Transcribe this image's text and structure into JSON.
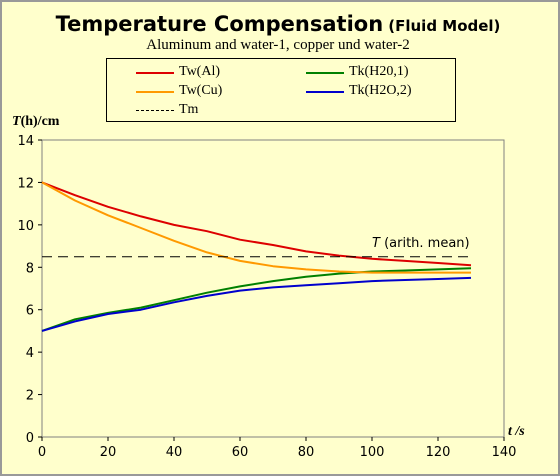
{
  "chart_data": {
    "type": "line",
    "title": "Temperature Compensation",
    "title_tag": "(Fluid Model)",
    "subtitle": "Aluminum and water-1, copper und water-2",
    "ylabel_italic": "T",
    "ylabel_rest": "(h)/cm",
    "xlabel": "t /s",
    "xlim": [
      0,
      140
    ],
    "ylim": [
      0,
      14
    ],
    "xticks": [
      "0",
      "20",
      "40",
      "60",
      "80",
      "100",
      "120",
      "140"
    ],
    "yticks": [
      "0",
      "2",
      "4",
      "6",
      "8",
      "10",
      "12",
      "14"
    ],
    "grid": false,
    "legend_position": "top",
    "annotation_italic": "T",
    "annotation_rest": " (arith. mean)",
    "annotation_x": 100,
    "annotation_y": 9.2,
    "series": [
      {
        "name": "Tw(Al)",
        "color": "#dd0000",
        "style": "solid",
        "x": [
          0,
          10,
          20,
          30,
          40,
          50,
          60,
          70,
          80,
          90,
          100,
          110,
          120,
          130
        ],
        "y": [
          12,
          11.4,
          10.85,
          10.4,
          10,
          9.7,
          9.3,
          9.05,
          8.75,
          8.55,
          8.4,
          8.3,
          8.2,
          8.1
        ]
      },
      {
        "name": "Tk(H20,1)",
        "color": "#008000",
        "style": "solid",
        "x": [
          0,
          10,
          20,
          30,
          40,
          50,
          60,
          70,
          80,
          90,
          100,
          110,
          120,
          130
        ],
        "y": [
          5,
          5.55,
          5.85,
          6.1,
          6.45,
          6.8,
          7.1,
          7.35,
          7.55,
          7.7,
          7.8,
          7.85,
          7.9,
          7.95
        ]
      },
      {
        "name": "Tw(Cu)",
        "color": "#ff9900",
        "style": "solid",
        "x": [
          0,
          10,
          20,
          30,
          40,
          50,
          60,
          70,
          80,
          90,
          100,
          110,
          120,
          130
        ],
        "y": [
          12,
          11.15,
          10.45,
          9.85,
          9.25,
          8.7,
          8.3,
          8.05,
          7.9,
          7.8,
          7.75,
          7.75,
          7.75,
          7.75
        ]
      },
      {
        "name": "Tk(H2O,2)",
        "color": "#0000cc",
        "style": "solid",
        "x": [
          0,
          10,
          20,
          30,
          40,
          50,
          60,
          70,
          80,
          90,
          100,
          110,
          120,
          130
        ],
        "y": [
          5,
          5.45,
          5.8,
          6.0,
          6.35,
          6.65,
          6.9,
          7.05,
          7.15,
          7.25,
          7.35,
          7.4,
          7.45,
          7.5
        ]
      },
      {
        "name": "Tm",
        "color": "#000000",
        "style": "dashed",
        "x": [
          0,
          130
        ],
        "y": [
          8.5,
          8.5
        ]
      }
    ]
  }
}
